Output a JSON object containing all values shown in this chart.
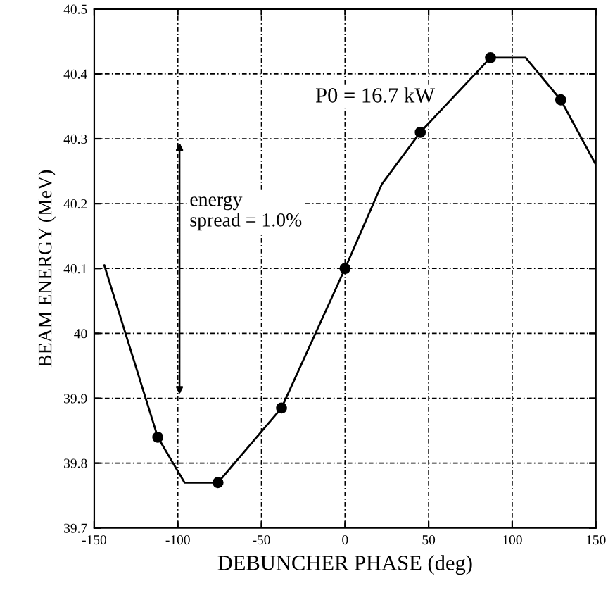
{
  "chart_data": {
    "type": "line",
    "xlabel": "DEBUNCHER PHASE (deg)",
    "ylabel": "BEAM ENERGY (MeV)",
    "series": [
      {
        "color": "#000000",
        "x": [
          -144,
          -112,
          -96,
          -76,
          -38,
          0,
          22,
          45,
          87,
          108,
          129,
          150
        ],
        "values": [
          40.105,
          39.84,
          39.77,
          39.77,
          39.885,
          40.1,
          40.23,
          40.31,
          40.425,
          40.425,
          40.36,
          40.26
        ],
        "marker": "none"
      },
      {
        "type": "scatter",
        "color": "#000000",
        "x": [
          -112,
          -76,
          -38,
          0,
          45,
          87,
          129
        ],
        "values": [
          39.84,
          39.77,
          39.885,
          40.1,
          40.31,
          40.425,
          40.36
        ],
        "marker": "circle"
      }
    ],
    "xlim": [
      -150,
      150
    ],
    "xticks": [
      -150,
      -100,
      -50,
      0,
      50,
      100,
      150
    ],
    "ylim": [
      39.7,
      40.5
    ],
    "yticks": [
      39.7,
      39.8,
      39.9,
      40,
      40.1,
      40.2,
      40.3,
      40.4,
      40.5
    ],
    "grid": true,
    "line_style": "solid",
    "annotations": [
      "P0 = 16.7 kW",
      "energy\nspread = 1.0%"
    ]
  }
}
